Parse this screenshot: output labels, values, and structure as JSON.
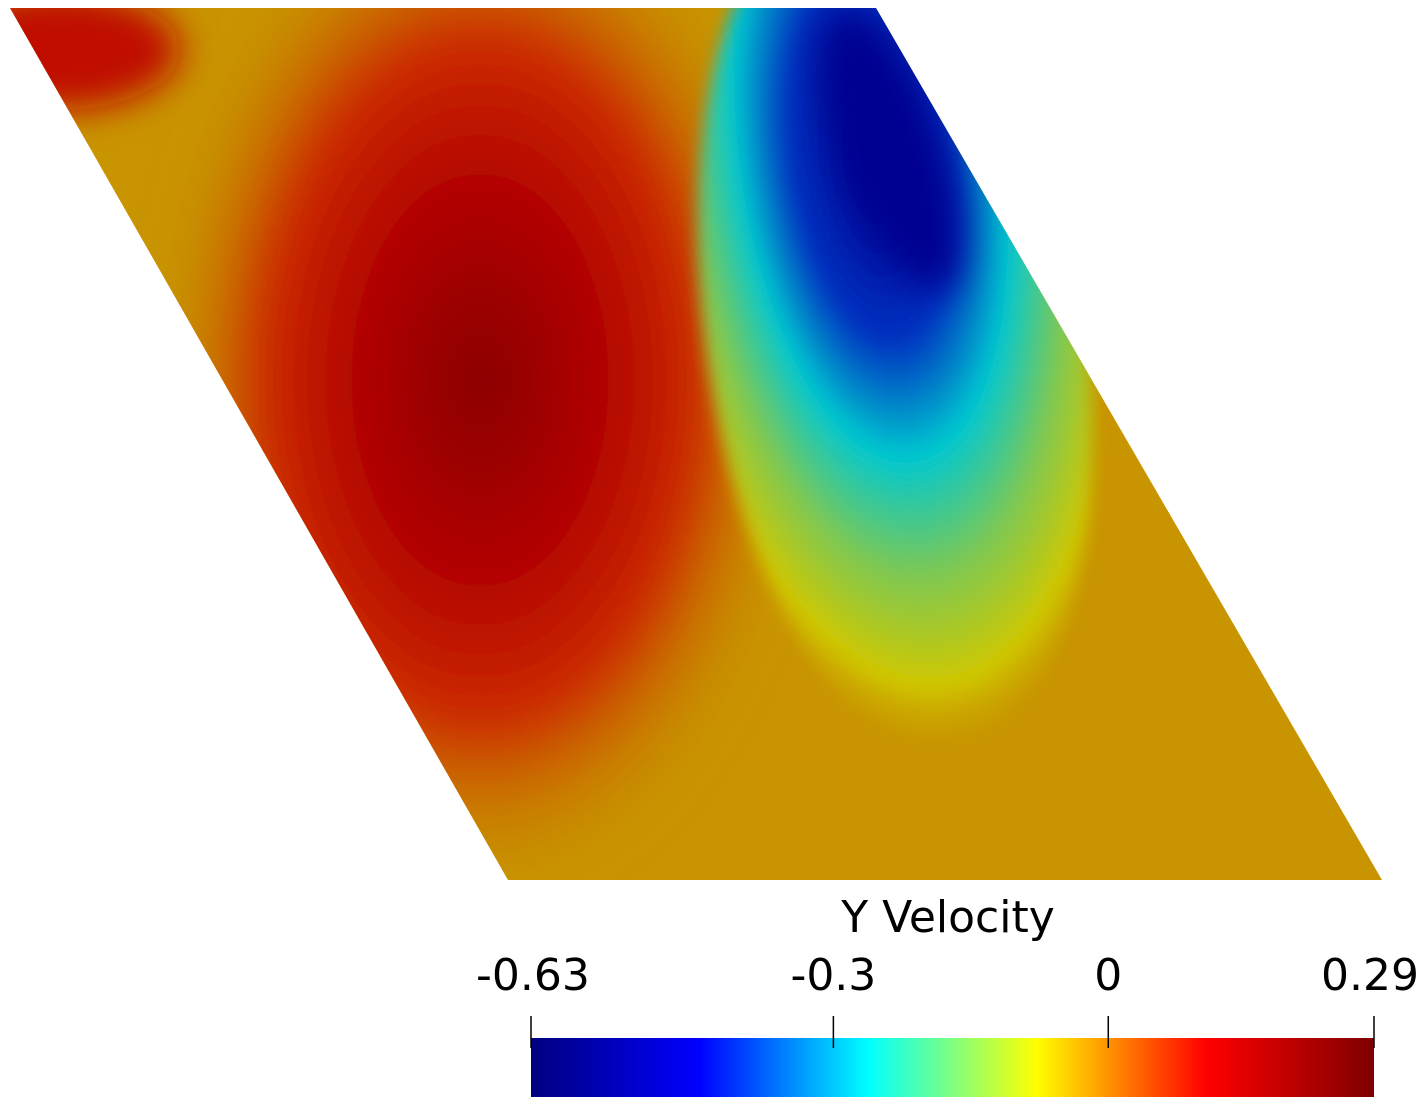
{
  "chart_data": {
    "type": "contour",
    "title": "Y Velocity",
    "colorbar": {
      "lim": [
        -0.63,
        0.29
      ],
      "ticks": [
        -0.63,
        -0.3,
        0,
        0.29
      ],
      "colors": [
        "#00007f",
        "#0000ff",
        "#00ffff",
        "#ffff00",
        "#ff0000",
        "#7f0000"
      ]
    }
  }
}
